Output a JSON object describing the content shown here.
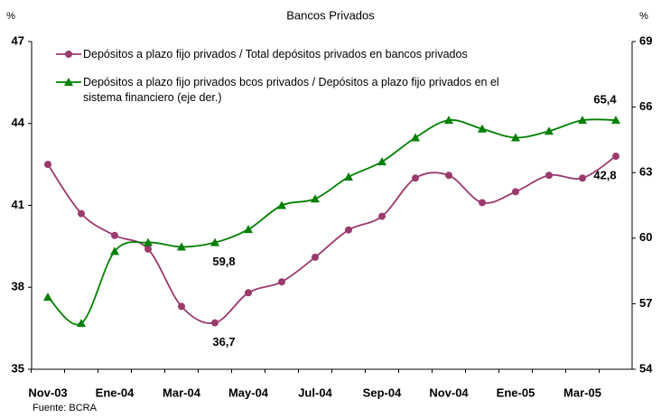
{
  "chart_data": {
    "type": "line",
    "subtitle": "Bancos Privados",
    "y_label": "%",
    "y2_label": "%",
    "note": "Fuente: BCRA",
    "categories": [
      "Nov-03",
      null,
      "Ene-04",
      null,
      "Mar-04",
      null,
      "May-04",
      null,
      "Jul-04",
      null,
      "Sep-04",
      null,
      "Nov-04",
      null,
      "Ene-05",
      null,
      "Mar-05",
      null
    ],
    "series": [
      {
        "name": "Depósitos a plazo fijo privados / Total depósitos privados en bancos privados",
        "color": "#9b3a6e",
        "marker": "circle",
        "values": [
          42.5,
          40.7,
          39.9,
          39.4,
          37.3,
          36.7,
          37.8,
          38.2,
          39.1,
          40.1,
          40.6,
          42.0,
          42.1,
          41.1,
          41.5,
          42.1,
          42.0,
          42.8
        ],
        "value_labels": [
          null,
          null,
          null,
          null,
          null,
          "36,7",
          null,
          null,
          null,
          null,
          null,
          null,
          null,
          null,
          null,
          null,
          null,
          "42,8"
        ]
      },
      {
        "name": "Depósitos a plazo fijo privados bcos privados / Depósitos a plazo fijo privados en el sistema financiero (eje der.)",
        "color": "#008000",
        "marker": "triangle",
        "axis": "y2",
        "values": [
          57.3,
          56.1,
          59.4,
          59.8,
          59.6,
          59.8,
          60.4,
          61.5,
          61.8,
          62.8,
          63.5,
          64.6,
          65.4,
          65.0,
          64.6,
          64.9,
          65.4,
          65.4
        ],
        "value_labels": [
          null,
          null,
          null,
          null,
          null,
          "59,8",
          null,
          null,
          null,
          null,
          null,
          null,
          null,
          null,
          null,
          null,
          null,
          "65,4"
        ]
      }
    ],
    "ylim": [
      35,
      47
    ],
    "yticks": [
      35,
      38,
      41,
      44,
      47
    ],
    "y2lim": [
      54,
      69
    ],
    "y2ticks": [
      54,
      57,
      60,
      63,
      66,
      69
    ],
    "legend": "upper left"
  }
}
